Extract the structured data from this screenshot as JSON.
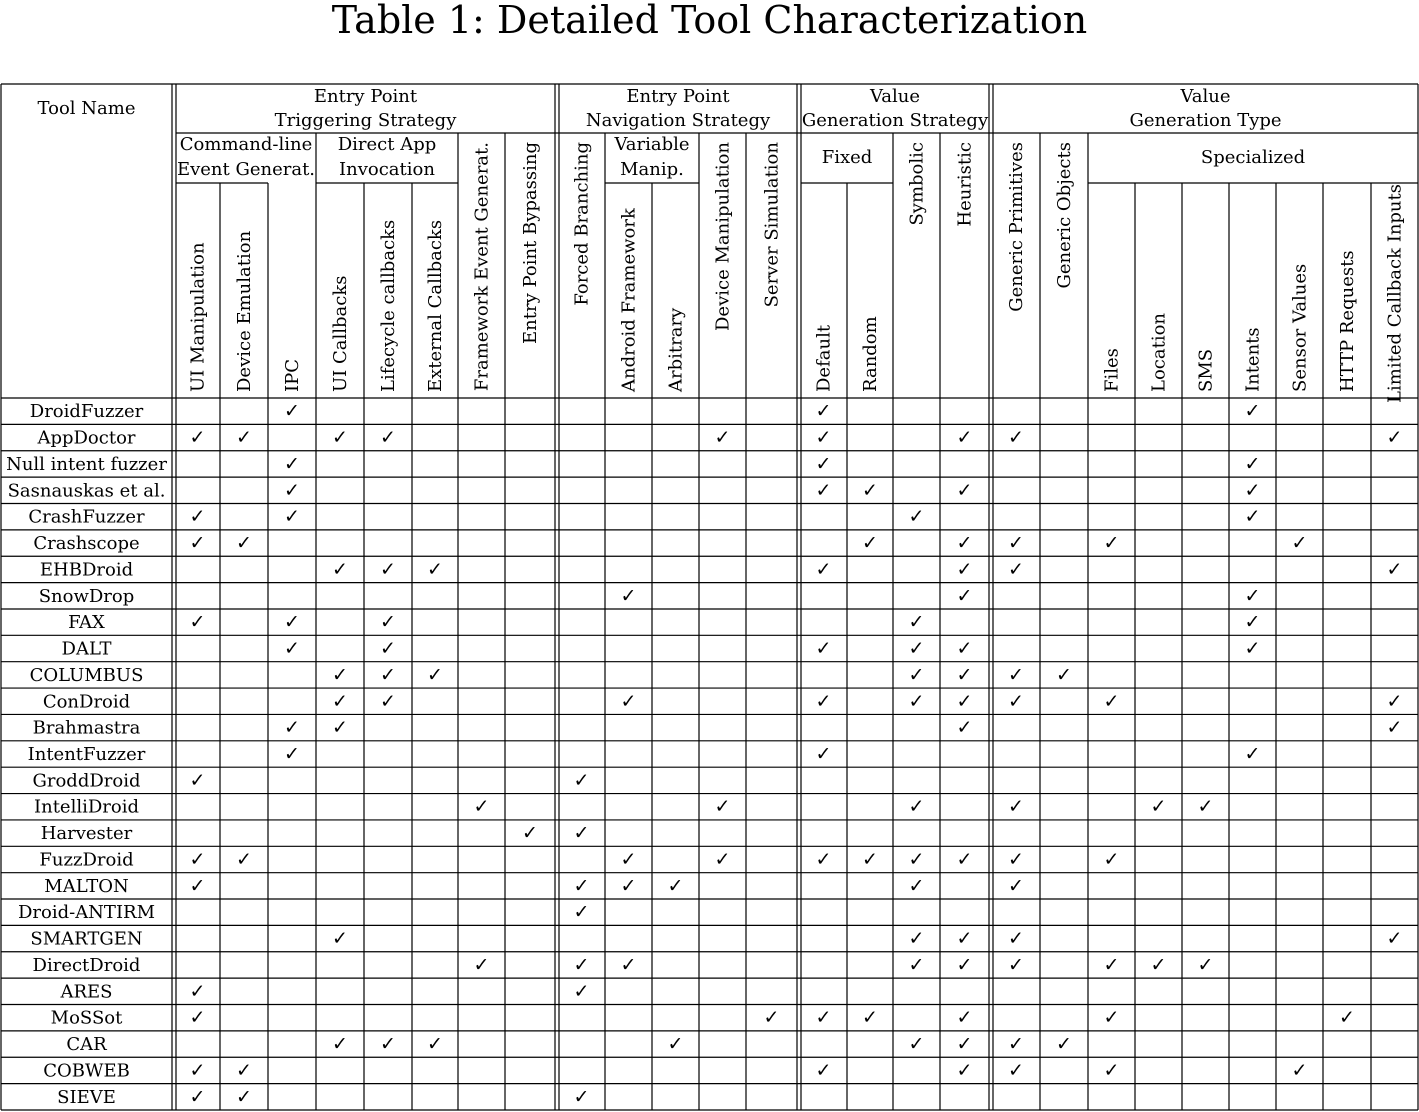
{
  "caption": "Table 1: Detailed Tool Characterization",
  "header": {
    "tool_name": "Tool Name",
    "groups": [
      {
        "lines": [
          "Entry Point",
          "Triggering Strategy"
        ]
      },
      {
        "lines": [
          "Entry Point",
          "Navigation Strategy"
        ]
      },
      {
        "lines": [
          "Value",
          "Generation Strategy"
        ]
      },
      {
        "lines": [
          "Value",
          "Generation Type"
        ]
      }
    ],
    "subgroups": [
      {
        "lines": [
          "Command-line",
          "Event Generat."
        ]
      },
      {
        "lines": [
          "Direct App",
          "Invocation"
        ]
      },
      {
        "lines": [
          "Variable",
          "Manip."
        ]
      },
      {
        "lines": [
          "Fixed"
        ]
      },
      {
        "lines": [
          "Specialized"
        ]
      }
    ],
    "columns": [
      "UI Manipulation",
      "Device Emulation",
      "IPC",
      "UI Callbacks",
      "Lifecycle callbacks",
      "External Callbacks",
      "Framework Event Generat.",
      "Entry Point Bypassing",
      "Forced Branching",
      "Android Framework",
      "Arbitrary",
      "Device Manipulation",
      "Server Simulation",
      "Default",
      "Random",
      "Symbolic",
      "Heuristic",
      "Generic Primitives",
      "Generic Objects",
      "Files",
      "Location",
      "SMS",
      "Intents",
      "Sensor Values",
      "HTTP Requests",
      "Limited Callback Inputs"
    ]
  },
  "check_symbol": "✓",
  "rows": [
    {
      "name": "DroidFuzzer",
      "checks": [
        2,
        13,
        22
      ]
    },
    {
      "name": "AppDoctor",
      "checks": [
        0,
        1,
        3,
        4,
        11,
        13,
        16,
        17,
        25
      ]
    },
    {
      "name": "Null intent fuzzer",
      "checks": [
        2,
        13,
        22
      ]
    },
    {
      "name": "Sasnauskas et al.",
      "checks": [
        2,
        13,
        14,
        16,
        22
      ]
    },
    {
      "name": "CrashFuzzer",
      "checks": [
        0,
        2,
        15,
        22
      ]
    },
    {
      "name": "Crashscope",
      "checks": [
        0,
        1,
        14,
        16,
        17,
        19,
        23
      ]
    },
    {
      "name": "EHBDroid",
      "checks": [
        3,
        4,
        5,
        13,
        16,
        17,
        25
      ]
    },
    {
      "name": "SnowDrop",
      "checks": [
        9,
        16,
        22
      ]
    },
    {
      "name": "FAX",
      "checks": [
        0,
        2,
        4,
        15,
        22
      ]
    },
    {
      "name": "DALT",
      "checks": [
        2,
        4,
        13,
        15,
        16,
        22
      ]
    },
    {
      "name": "COLUMBUS",
      "checks": [
        3,
        4,
        5,
        15,
        16,
        17,
        18
      ]
    },
    {
      "name": "ConDroid",
      "checks": [
        3,
        4,
        9,
        13,
        15,
        16,
        17,
        19,
        25
      ]
    },
    {
      "name": "Brahmastra",
      "checks": [
        2,
        3,
        16,
        25
      ]
    },
    {
      "name": "IntentFuzzer",
      "checks": [
        2,
        13,
        22
      ]
    },
    {
      "name": "GroddDroid",
      "checks": [
        0,
        8
      ]
    },
    {
      "name": "IntelliDroid",
      "checks": [
        6,
        11,
        15,
        17,
        20,
        21
      ]
    },
    {
      "name": "Harvester",
      "checks": [
        7,
        8
      ]
    },
    {
      "name": "FuzzDroid",
      "checks": [
        0,
        1,
        9,
        11,
        13,
        14,
        15,
        16,
        17,
        19
      ]
    },
    {
      "name": "MALTON",
      "checks": [
        0,
        8,
        9,
        10,
        15,
        17
      ]
    },
    {
      "name": "Droid-ANTIRM",
      "checks": [
        8
      ]
    },
    {
      "name": "SMARTGEN",
      "checks": [
        3,
        15,
        16,
        17,
        25
      ]
    },
    {
      "name": "DirectDroid",
      "checks": [
        6,
        8,
        9,
        15,
        16,
        17,
        19,
        20,
        21
      ]
    },
    {
      "name": "ARES",
      "checks": [
        0,
        8
      ]
    },
    {
      "name": "MoSSot",
      "checks": [
        0,
        12,
        13,
        14,
        16,
        19,
        24
      ]
    },
    {
      "name": "CAR",
      "checks": [
        3,
        4,
        5,
        10,
        15,
        16,
        17,
        18
      ]
    },
    {
      "name": "COBWEB",
      "checks": [
        0,
        1,
        13,
        16,
        17,
        19,
        23
      ]
    },
    {
      "name": "SIEVE",
      "checks": [
        0,
        1,
        8
      ]
    }
  ]
}
